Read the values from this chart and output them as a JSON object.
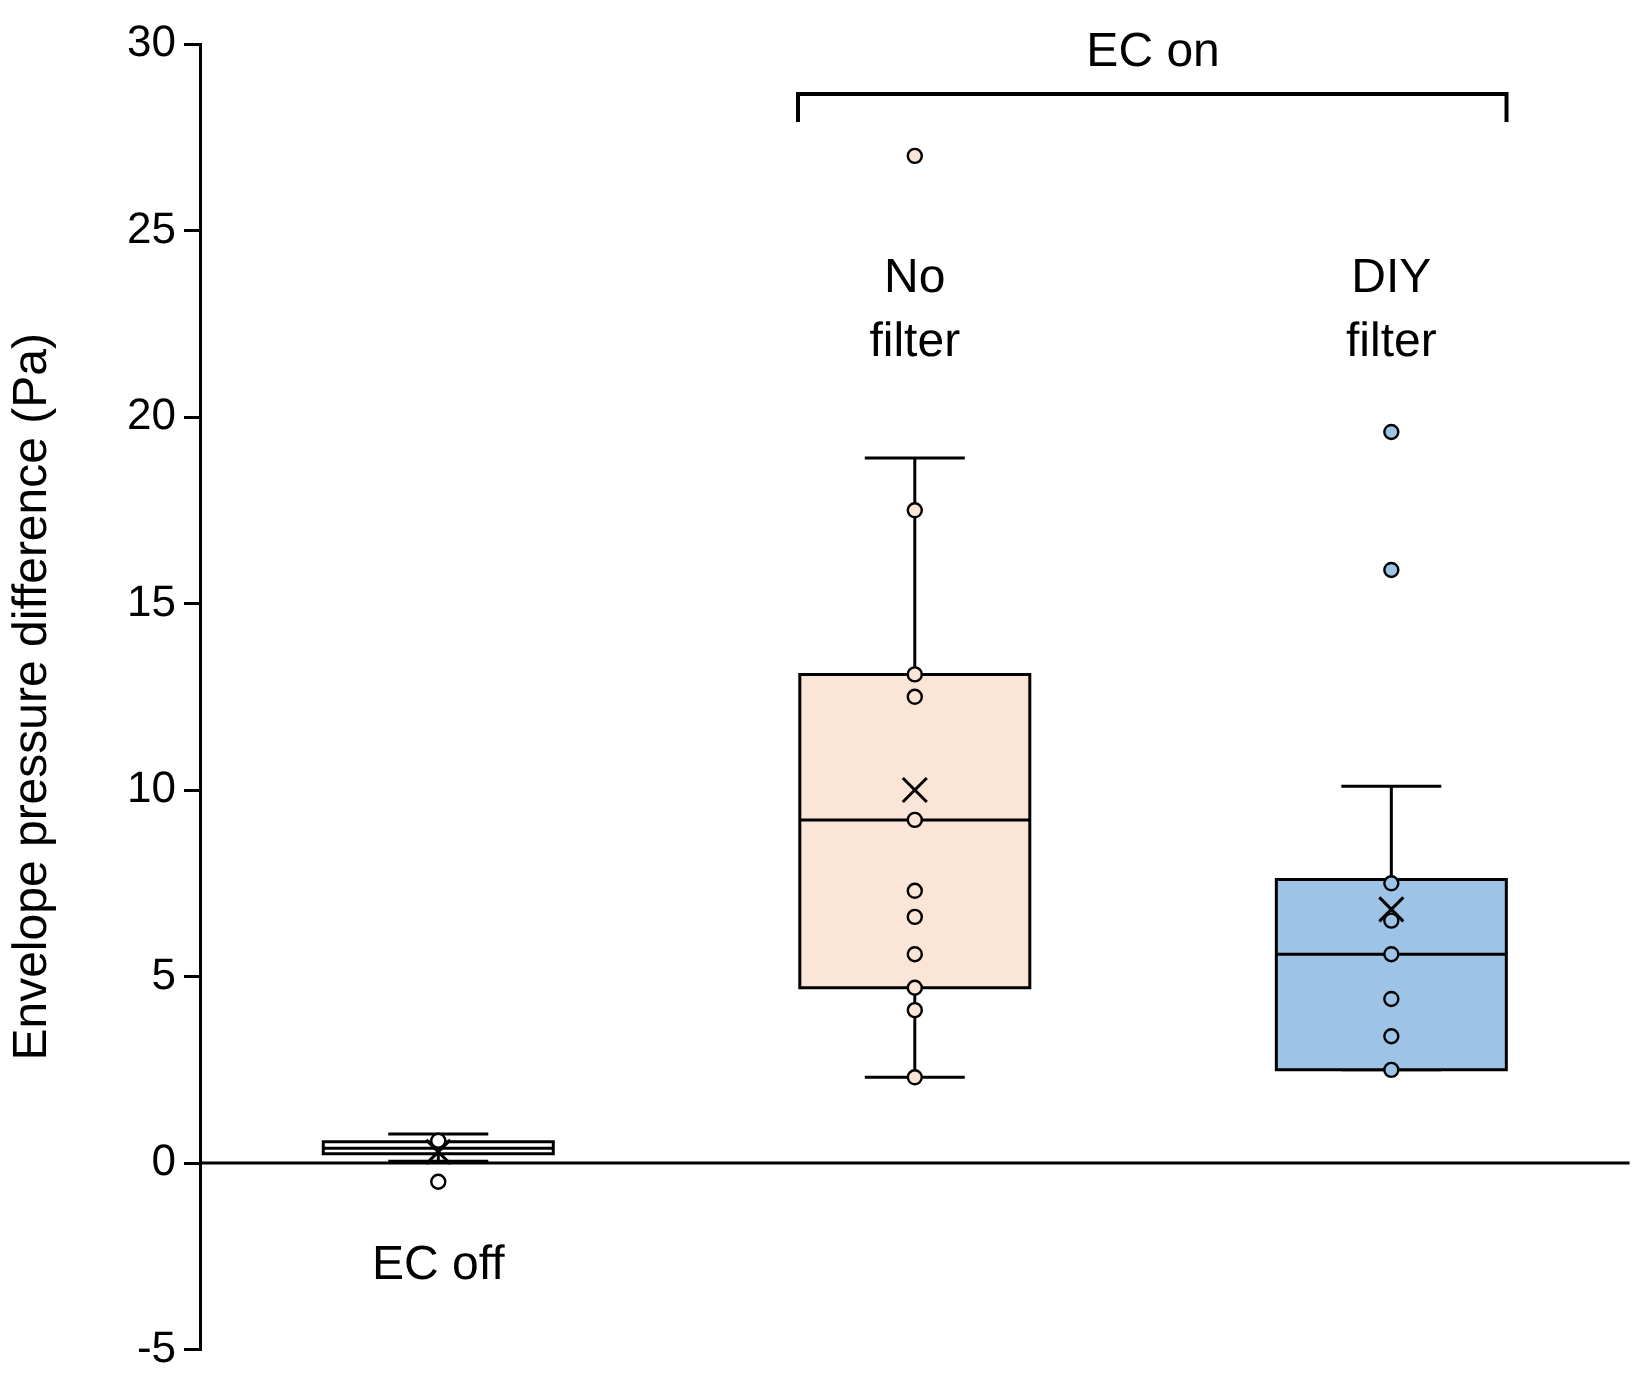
{
  "chart_data": {
    "type": "box",
    "ylabel": "Envelope pressure difference (Pa)",
    "categories": [
      "EC off",
      "No filter",
      "DIY filter"
    ],
    "ylim": [
      -5,
      30
    ],
    "yticks": [
      -5,
      0,
      5,
      10,
      15,
      20,
      25,
      30
    ],
    "tick_labels": "y",
    "grid": false,
    "legend": false,
    "annotations": [
      "EC on"
    ],
    "ref_lines": [
      {
        "axis": "y",
        "value": 0
      }
    ],
    "series": [
      {
        "type": "box",
        "colors": [
          "#ffffff",
          "#fbe5d6",
          "#9dc3e6"
        ],
        "boxes": [
          {
            "low": 0.05,
            "q1": 0.25,
            "median": 0.4,
            "q3": 0.57,
            "high": 0.78,
            "mean": 0.3,
            "outliers": [
              -0.5
            ]
          },
          {
            "low": 2.3,
            "q1": 4.7,
            "median": 9.2,
            "q3": 13.1,
            "high": 18.9,
            "mean": 10.0,
            "outliers": [
              27.0
            ]
          },
          {
            "low": 2.5,
            "q1": 2.5,
            "median": 5.6,
            "q3": 7.6,
            "high": 10.1,
            "mean": 6.8,
            "outliers": [
              19.6,
              15.9
            ]
          }
        ]
      },
      {
        "type": "scatter",
        "marker": "circle",
        "x": [
          "EC off",
          "No filter",
          "No filter",
          "No filter",
          "No filter",
          "No filter",
          "No filter",
          "No filter",
          "No filter",
          "No filter",
          "No filter",
          "DIY filter",
          "DIY filter",
          "DIY filter",
          "DIY filter",
          "DIY filter",
          "DIY filter"
        ],
        "values": [
          0.6,
          17.5,
          13.1,
          12.5,
          9.2,
          7.3,
          6.6,
          5.6,
          4.7,
          4.1,
          2.3,
          7.5,
          6.5,
          5.6,
          4.4,
          3.4,
          2.5
        ],
        "colors": [
          "#ffffff",
          "#fbe5d6",
          "#fbe5d6",
          "#fbe5d6",
          "#fbe5d6",
          "#fbe5d6",
          "#fbe5d6",
          "#fbe5d6",
          "#fbe5d6",
          "#fbe5d6",
          "#fbe5d6",
          "#9dc3e6",
          "#9dc3e6",
          "#9dc3e6",
          "#9dc3e6",
          "#9dc3e6",
          "#9dc3e6"
        ]
      }
    ]
  }
}
